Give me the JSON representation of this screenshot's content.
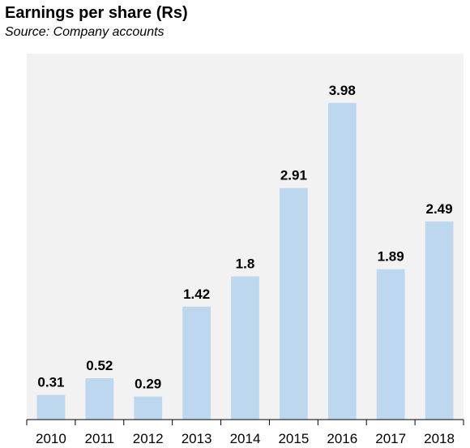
{
  "header": {
    "title": "Earnings per share (Rs)",
    "subtitle": "Source: Company accounts"
  },
  "colors": {
    "plot_background": "#f2f2f2",
    "bar": "#bdd7ee",
    "axis": "#000000"
  },
  "chart_data": {
    "type": "bar",
    "title": "Earnings per share (Rs)",
    "subtitle": "Source: Company accounts",
    "categories": [
      "2010",
      "2011",
      "2012",
      "2013",
      "2014",
      "2015",
      "2016",
      "2017",
      "2018"
    ],
    "values": [
      0.31,
      0.52,
      0.29,
      1.42,
      1.8,
      2.91,
      3.98,
      1.89,
      2.49
    ],
    "data_labels": [
      "0.31",
      "0.52",
      "0.29",
      "1.42",
      "1.8",
      "2.91",
      "3.98",
      "1.89",
      "2.49"
    ],
    "xlabel": "",
    "ylabel": "",
    "ylim": [
      0,
      4.6
    ],
    "grid": false,
    "legend": "none"
  }
}
